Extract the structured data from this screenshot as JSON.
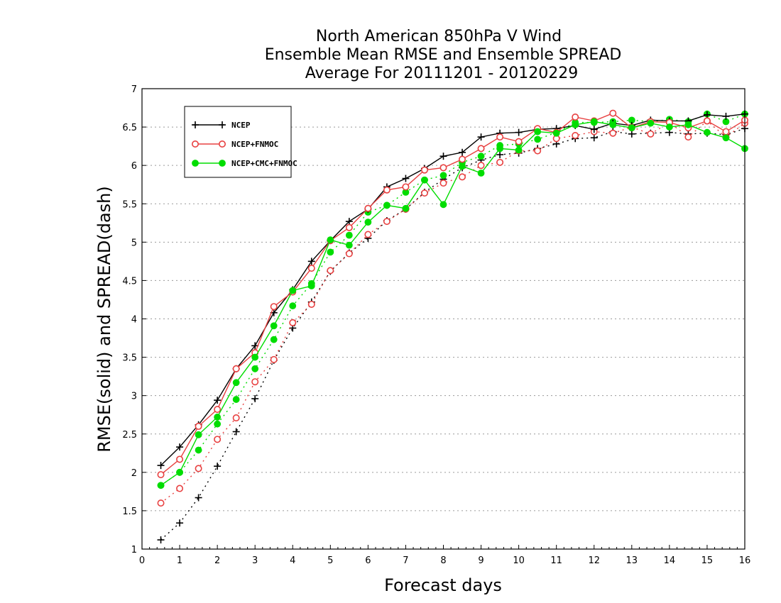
{
  "chart_data": {
    "type": "line",
    "title": [
      "North American 850hPa V Wind",
      "Ensemble Mean RMSE and Ensemble SPREAD",
      "Average For 20111201 - 20120229"
    ],
    "xlabel": "Forecast days",
    "ylabel": "RMSE(solid) and SPREAD(dash)",
    "xlim": [
      0,
      16
    ],
    "ylim": [
      1,
      7
    ],
    "xticks": [
      0,
      1,
      2,
      3,
      4,
      5,
      6,
      7,
      8,
      9,
      10,
      11,
      12,
      13,
      14,
      15,
      16
    ],
    "yticks": [
      1,
      1.5,
      2,
      2.5,
      3,
      3.5,
      4,
      4.5,
      5,
      5.5,
      6,
      6.5,
      7
    ],
    "ytick_labels": [
      "1",
      "1.5",
      "2",
      "2.5",
      "3",
      "3.5",
      "4",
      "4.5",
      "5",
      "5.5",
      "6",
      "6.5",
      "7"
    ],
    "grid": "horizontal-dotted",
    "legend_position": "top-left",
    "x": [
      0.5,
      1,
      1.5,
      2,
      2.5,
      3,
      3.5,
      4,
      4.5,
      5,
      5.5,
      6,
      6.5,
      7,
      7.5,
      8,
      8.5,
      9,
      9.5,
      10,
      10.5,
      11,
      11.5,
      12,
      12.5,
      13,
      13.5,
      14,
      14.5,
      15,
      15.5,
      16
    ],
    "series": [
      {
        "name": "NCEP",
        "metric": "RMSE",
        "line": "solid",
        "color": "#000000",
        "marker": "plus",
        "values": [
          2.09,
          2.33,
          2.62,
          2.94,
          3.35,
          3.65,
          4.08,
          4.38,
          4.75,
          5.02,
          5.27,
          5.43,
          5.72,
          5.83,
          5.96,
          6.12,
          6.17,
          6.37,
          6.42,
          6.43,
          6.47,
          6.48,
          6.52,
          6.47,
          6.55,
          6.52,
          6.59,
          6.58,
          6.58,
          6.66,
          6.64,
          6.67
        ]
      },
      {
        "name": "NCEP",
        "metric": "SPREAD",
        "line": "dotted",
        "color": "#000000",
        "marker": "plus",
        "values": [
          1.12,
          1.34,
          1.67,
          2.08,
          2.53,
          2.96,
          3.46,
          3.88,
          4.22,
          4.62,
          4.86,
          5.05,
          5.28,
          5.43,
          5.65,
          5.82,
          5.97,
          6.07,
          6.14,
          6.16,
          6.22,
          6.28,
          6.35,
          6.36,
          6.44,
          6.41,
          6.42,
          6.43,
          6.41,
          6.42,
          6.4,
          6.48
        ]
      },
      {
        "name": "NCEP+FNMOC",
        "metric": "RMSE",
        "line": "solid",
        "color": "#e84040",
        "marker": "open-circle",
        "values": [
          1.97,
          2.17,
          2.6,
          2.82,
          3.35,
          3.56,
          4.16,
          4.35,
          4.66,
          5.02,
          5.19,
          5.44,
          5.68,
          5.72,
          5.94,
          5.97,
          6.08,
          6.22,
          6.37,
          6.31,
          6.48,
          6.43,
          6.63,
          6.58,
          6.68,
          6.49,
          6.57,
          6.56,
          6.49,
          6.58,
          6.44,
          6.59
        ]
      },
      {
        "name": "NCEP+FNMOC",
        "metric": "SPREAD",
        "line": "dotted",
        "color": "#e84040",
        "marker": "open-circle",
        "values": [
          1.6,
          1.79,
          2.05,
          2.43,
          2.71,
          3.18,
          3.47,
          3.95,
          4.19,
          4.63,
          4.85,
          5.1,
          5.27,
          5.43,
          5.64,
          5.77,
          5.85,
          6.0,
          6.04,
          6.19,
          6.19,
          6.35,
          6.39,
          6.44,
          6.42,
          6.5,
          6.41,
          6.56,
          6.37,
          6.58,
          6.37,
          6.55
        ]
      },
      {
        "name": "NCEP+CMC+FNMOC",
        "metric": "RMSE",
        "line": "solid",
        "color": "#00dd00",
        "marker": "filled-circle",
        "values": [
          1.83,
          2.0,
          2.49,
          2.72,
          3.17,
          3.5,
          3.91,
          4.37,
          4.43,
          5.03,
          4.96,
          5.26,
          5.48,
          5.44,
          5.81,
          5.49,
          5.99,
          5.9,
          6.22,
          6.2,
          6.44,
          6.42,
          6.53,
          6.57,
          6.53,
          6.49,
          6.55,
          6.5,
          6.53,
          6.43,
          6.36,
          6.22
        ]
      },
      {
        "name": "NCEP+CMC+FNMOC",
        "metric": "SPREAD",
        "line": "dotted",
        "color": "#00dd00",
        "marker": "filled-circle",
        "values": [
          1.83,
          2.0,
          2.29,
          2.63,
          2.95,
          3.35,
          3.73,
          4.17,
          4.46,
          4.87,
          5.09,
          5.39,
          5.48,
          5.65,
          5.81,
          5.87,
          6.04,
          6.12,
          6.26,
          6.28,
          6.34,
          6.43,
          6.56,
          6.56,
          6.57,
          6.59,
          6.57,
          6.6,
          6.57,
          6.67,
          6.57,
          6.67
        ]
      }
    ],
    "legend": [
      {
        "label": "NCEP",
        "color": "#000000",
        "marker": "plus"
      },
      {
        "label": "NCEP+FNMOC",
        "color": "#e84040",
        "marker": "open-circle"
      },
      {
        "label": "NCEP+CMC+FNMOC",
        "color": "#00dd00",
        "marker": "filled-circle"
      }
    ]
  }
}
